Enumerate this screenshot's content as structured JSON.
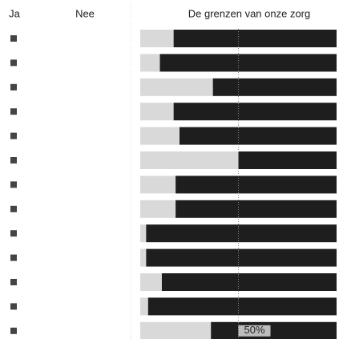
{
  "chart_data": {
    "type": "stacked-bar",
    "title": "De grenzen van onze zorg",
    "series": [
      {
        "name": "Nee",
        "color": "#d9d9d9",
        "values": [
          17,
          10,
          37,
          17,
          20,
          50,
          18,
          18,
          3,
          3,
          11,
          4,
          36
        ]
      },
      {
        "name": "Ja",
        "color": "#1e1e1e",
        "values": [
          83,
          90,
          63,
          83,
          80,
          50,
          82,
          82,
          97,
          97,
          89,
          96,
          64
        ]
      }
    ],
    "xlim": [
      0,
      100
    ],
    "xticks": [
      {
        "value": 50,
        "label": "50%"
      }
    ],
    "grid": true
  }
}
